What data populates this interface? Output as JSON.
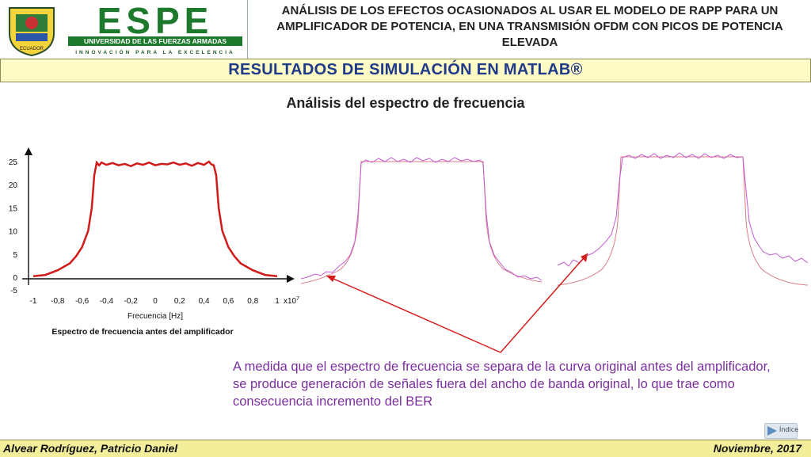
{
  "header": {
    "seal_text": "ECUADOR",
    "brand_name": "ESPE",
    "brand_university": "UNIVERSIDAD DE LAS FUERZAS ARMADAS",
    "brand_tagline": "INNOVACIÓN PARA LA EXCELENCIA",
    "title": "ANÁLISIS DE LOS EFECTOS OCASIONADOS AL USAR EL MODELO DE RAPP PARA UN AMPLIFICADOR DE POTENCIA, EN UNA TRANSMISIÓN OFDM CON PICOS DE POTENCIA ELEVADA"
  },
  "banner": {
    "text": "RESULTADOS DE SIMULACIÓN EN MATLAB®"
  },
  "subtitle": "Análisis del espectro de frecuencia",
  "chart_data": {
    "type": "line",
    "title": "",
    "xlabel": "Frecuencia [Hz]",
    "ylabel": "",
    "x_multiplier": "x10",
    "x_multiplier_exp": "7",
    "xlim": [
      -1.0,
      1.0
    ],
    "ylim": [
      -5,
      25
    ],
    "x_ticks": [
      "-1",
      "-0,8",
      "-0,6",
      "-0,4",
      "-0,2",
      "0",
      "0,2",
      "0,4",
      "0,6",
      "0,8",
      "1"
    ],
    "x_tick_values": [
      -1.0,
      -0.8,
      -0.6,
      -0.4,
      -0.2,
      0.0,
      0.2,
      0.4,
      0.6,
      0.8,
      1.0
    ],
    "y_ticks": [
      "-5",
      "0",
      "5",
      "10",
      "15",
      "20",
      "25"
    ],
    "y_tick_values": [
      -5,
      0,
      5,
      10,
      15,
      20,
      25
    ],
    "series": [
      {
        "color": "#d11a1a",
        "x": [
          -1.0,
          -0.9,
          -0.8,
          -0.7,
          -0.65,
          -0.6,
          -0.55,
          -0.52,
          -0.5,
          -0.48,
          -0.46,
          -0.44,
          -0.4,
          -0.35,
          -0.3,
          -0.25,
          -0.2,
          -0.15,
          -0.1,
          -0.05,
          0.0,
          0.05,
          0.1,
          0.15,
          0.2,
          0.25,
          0.3,
          0.35,
          0.4,
          0.44,
          0.46,
          0.48,
          0.5,
          0.52,
          0.55,
          0.6,
          0.65,
          0.7,
          0.8,
          0.9,
          1.0
        ],
        "y": [
          0.2,
          0.5,
          1.5,
          3,
          4.5,
          6.5,
          10,
          15,
          22,
          24.8,
          24.2,
          24.8,
          24.3,
          24.7,
          24.2,
          24.5,
          24.0,
          24.6,
          24.3,
          24.8,
          24.2,
          24.5,
          24.4,
          24.8,
          24.3,
          24.6,
          24.1,
          24.7,
          24.3,
          25.0,
          24.4,
          24.2,
          22,
          15,
          10,
          6.5,
          4.5,
          3,
          1.5,
          0.5,
          0.2
        ]
      }
    ]
  },
  "chart_caption": "Espectro de frecuencia antes del amplificador",
  "note": "A medida que el espectro de frecuencia se separa de la curva original antes del amplificador, se produce generación de señales fuera del ancho de banda original, lo que trae como consecuencia incremento del BER",
  "index_button": {
    "label": "Índice"
  },
  "footer": {
    "author": "Alvear Rodríguez, Patricio Daniel",
    "date": "Noviembre, 2017"
  }
}
